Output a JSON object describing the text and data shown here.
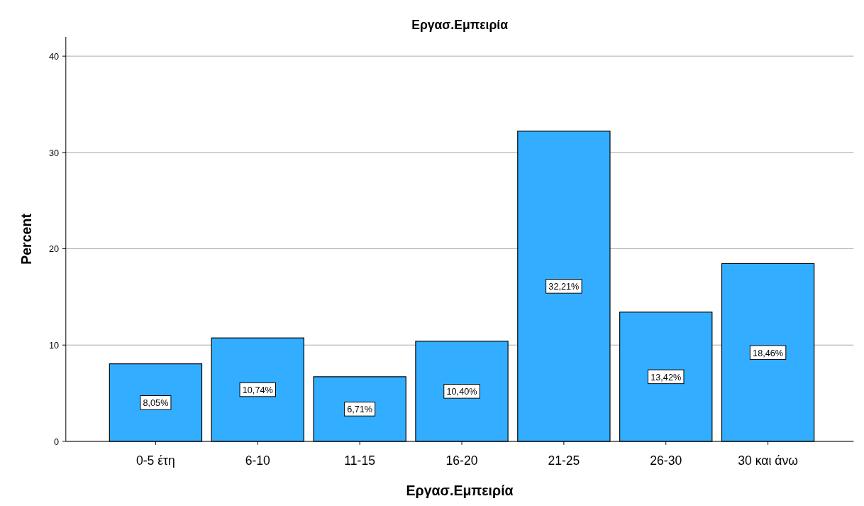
{
  "chart_data": {
    "type": "bar",
    "title": "Εργασ.Εμπειρία",
    "xlabel": "Εργασ.Εμπειρία",
    "ylabel": "Percent",
    "categories": [
      "0-5 έτη",
      "6-10",
      "11-15",
      "16-20",
      "21-25",
      "26-30",
      "30 και άνω"
    ],
    "values": [
      8.05,
      10.74,
      6.71,
      10.4,
      32.21,
      13.42,
      18.46
    ],
    "value_labels": [
      "8,05%",
      "10,74%",
      "6,71%",
      "10,40%",
      "32,21%",
      "13,42%",
      "18,46%"
    ],
    "color": "#33adff",
    "ylim": [
      0,
      42
    ],
    "yticks": [
      0,
      10,
      20,
      30,
      40
    ],
    "grid": "y"
  }
}
